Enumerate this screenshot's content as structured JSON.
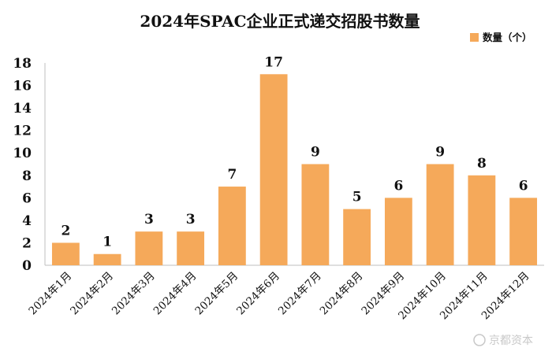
{
  "chart_data": {
    "type": "bar",
    "title": "2024年SPAC企业正式递交招股书数量",
    "categories": [
      "2024年1月",
      "2024年2月",
      "2024年3月",
      "2024年4月",
      "2024年5月",
      "2024年6月",
      "2024年7月",
      "2024年8月",
      "2024年9月",
      "2024年10月",
      "2024年11月",
      "2024年12月"
    ],
    "series": [
      {
        "name": "数量（个）",
        "values": [
          2,
          1,
          3,
          3,
          7,
          17,
          9,
          5,
          6,
          9,
          8,
          6
        ]
      }
    ],
    "ylim": [
      0,
      18
    ],
    "yticks": [
      "0",
      "2",
      "4",
      "6",
      "8",
      "10",
      "12",
      "14",
      "16",
      "18"
    ],
    "grid": false,
    "legend": "top-right",
    "bar_color": "#F5A95A",
    "data_labels": true
  },
  "watermark": "京都资本"
}
